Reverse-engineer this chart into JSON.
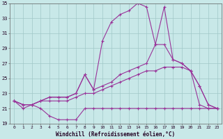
{
  "xlabel": "Windchill (Refroidissement éolien,°C)",
  "line_color": "#993399",
  "background_color": "#c8e8e8",
  "grid_color": "#a0c8c8",
  "xlim_min": -0.5,
  "xlim_max": 23.5,
  "ylim_min": 19,
  "ylim_max": 35,
  "yticks": [
    19,
    21,
    23,
    25,
    27,
    29,
    31,
    33,
    35
  ],
  "xticks": [
    0,
    1,
    2,
    3,
    4,
    5,
    6,
    7,
    8,
    9,
    10,
    11,
    12,
    13,
    14,
    15,
    16,
    17,
    18,
    19,
    20,
    21,
    22,
    23
  ],
  "series": [
    [
      22.0,
      21.0,
      21.5,
      21.0,
      20.0,
      19.5,
      19.5,
      19.5,
      21.0,
      21.0,
      21.0,
      21.0,
      21.0,
      21.0,
      21.0,
      21.0,
      21.0,
      21.0,
      21.0,
      21.0,
      21.0,
      21.0,
      21.0,
      21.0
    ],
    [
      22.0,
      21.5,
      21.5,
      22.0,
      22.0,
      22.0,
      22.0,
      22.5,
      23.0,
      23.0,
      23.5,
      24.0,
      24.5,
      25.0,
      25.5,
      26.0,
      26.0,
      26.5,
      26.5,
      26.5,
      26.0,
      21.5,
      21.0,
      21.0
    ],
    [
      22.0,
      21.5,
      21.5,
      22.0,
      22.5,
      22.5,
      22.5,
      23.0,
      25.5,
      23.5,
      24.0,
      24.5,
      25.5,
      26.0,
      26.5,
      27.0,
      29.5,
      29.5,
      27.5,
      27.0,
      26.0,
      24.0,
      21.5,
      21.0
    ],
    [
      22.0,
      21.5,
      21.5,
      22.0,
      22.5,
      22.5,
      22.5,
      23.0,
      25.5,
      23.5,
      30.0,
      32.5,
      33.5,
      34.0,
      35.0,
      34.5,
      29.5,
      34.5,
      27.5,
      27.0,
      26.0,
      24.0,
      21.5,
      21.0
    ]
  ]
}
